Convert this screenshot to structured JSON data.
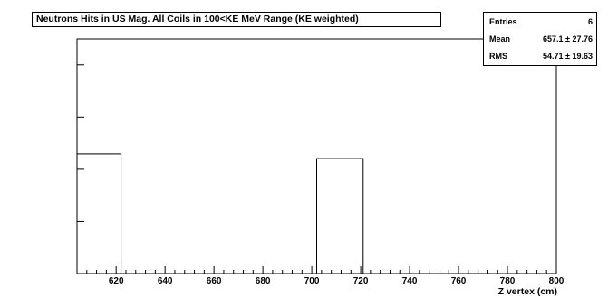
{
  "chart_data": {
    "type": "histogram",
    "title": "Neutrons Hits in US Mag. All Coils in 100<KE MeV Range (KE weighted)",
    "xlabel": "Z vertex (cm)",
    "ylabel": "",
    "xlim": [
      604,
      800
    ],
    "ylim": [
      0,
      1.0
    ],
    "x_ticks": [
      620,
      640,
      660,
      680,
      700,
      720,
      740,
      760,
      780,
      800
    ],
    "grid": false,
    "bins": [
      {
        "x0": 604,
        "x1": 622,
        "value": 0.51
      },
      {
        "x0": 702,
        "x1": 721,
        "value": 0.49
      }
    ]
  },
  "stats": {
    "entries_label": "Entries",
    "entries_value": "6",
    "mean_label": "Mean",
    "mean_value": "657.1 ±  27.76",
    "rms_label": "RMS",
    "rms_value": "54.71 ±  19.63"
  }
}
